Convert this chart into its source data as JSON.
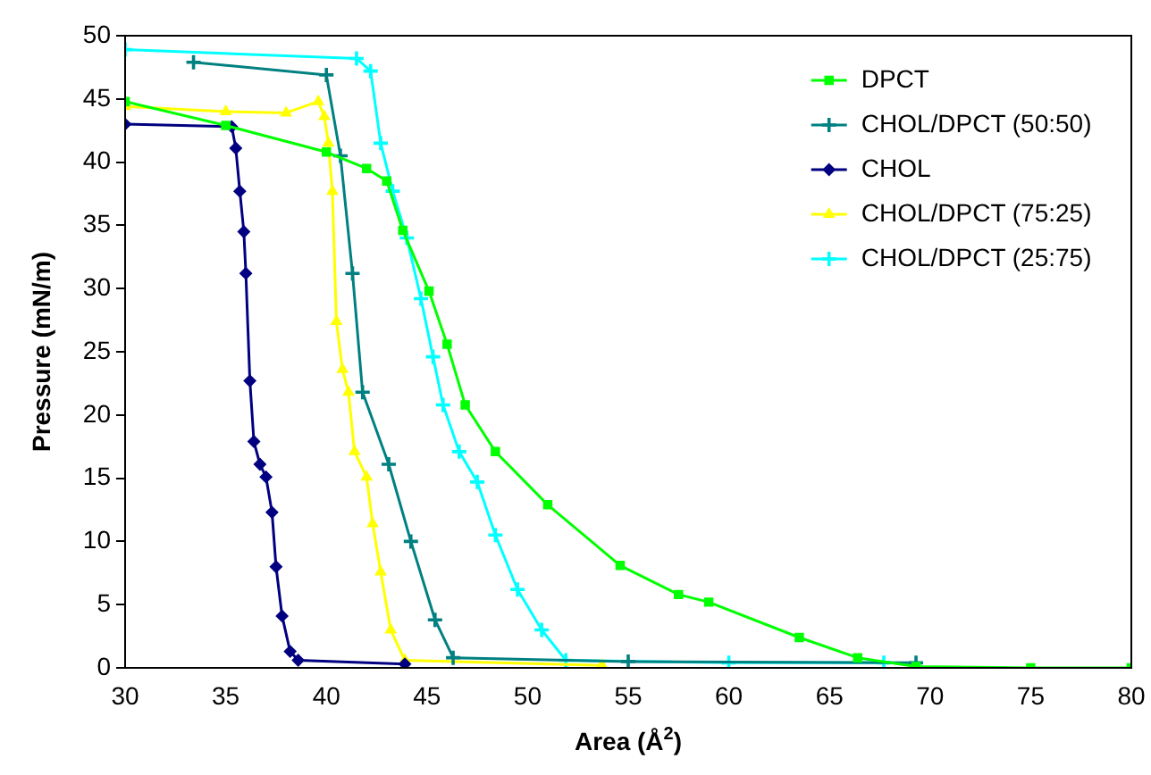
{
  "chart_data": {
    "type": "line",
    "xlabel": "Area (Å$^{2}$)",
    "ylabel": "Pressure (mN/m)",
    "xlim": [
      30,
      80
    ],
    "xticks": [
      30,
      35,
      40,
      45,
      50,
      55,
      60,
      65,
      70,
      75,
      80
    ],
    "ylim": [
      0,
      50
    ],
    "yticks": [
      0,
      5,
      10,
      15,
      20,
      25,
      30,
      35,
      40,
      45,
      50
    ],
    "grid": false,
    "legend": "top right",
    "line_style": "solid",
    "series": [
      {
        "name": "DPCT",
        "color": "#00ff00",
        "marker": "square",
        "x": [
          30,
          35,
          40,
          42,
          43,
          43.8,
          45.1,
          46,
          46.9,
          48.4,
          51,
          54.6,
          57.5,
          59,
          63.5,
          66.4,
          69.3,
          75,
          80
        ],
        "values": [
          44.8,
          42.9,
          40.8,
          39.5,
          38.5,
          34.6,
          29.8,
          25.6,
          20.8,
          17.1,
          12.9,
          8.1,
          5.8,
          5.2,
          2.4,
          0.8,
          0.1,
          0,
          0
        ]
      },
      {
        "name": "CHOL/DPCT (50:50)",
        "color": "#008080",
        "marker": "cross",
        "x": [
          33.4,
          40,
          40.7,
          41.3,
          41.8,
          43.1,
          44.2,
          45.4,
          46.3,
          55,
          69.3
        ],
        "values": [
          47.9,
          46.9,
          40.5,
          31.2,
          21.8,
          16.1,
          10,
          3.8,
          0.8,
          0.5,
          0.4
        ]
      },
      {
        "name": "CHOL",
        "color": "#000080",
        "marker": "diamond",
        "x": [
          30,
          35.3,
          35.5,
          35.7,
          35.9,
          36,
          36.2,
          36.4,
          36.7,
          37,
          37.3,
          37.5,
          37.8,
          38.2,
          38.6,
          43.9
        ],
        "values": [
          43,
          42.8,
          41.1,
          37.7,
          34.5,
          31.2,
          22.7,
          17.9,
          16.1,
          15.1,
          12.3,
          8,
          4.1,
          1.3,
          0.6,
          0.3
        ]
      },
      {
        "name": "CHOL/DPCT (75:25)",
        "color": "#ffff00",
        "marker": "triangle",
        "x": [
          30,
          35,
          38,
          39.6,
          39.9,
          40.1,
          40.3,
          40.5,
          40.8,
          41.1,
          41.4,
          42,
          42.3,
          42.7,
          43.2,
          43.9,
          53.7
        ],
        "values": [
          44.4,
          44,
          43.9,
          44.8,
          43.6,
          41.5,
          37.7,
          27.4,
          23.6,
          21.8,
          17.1,
          15.1,
          11.4,
          7.6,
          3,
          0.6,
          0.2
        ]
      },
      {
        "name": "CHOL/DPCT (25:75)",
        "color": "#00ffff",
        "marker": "cross",
        "x": [
          30,
          41.5,
          42.2,
          42.7,
          43.3,
          44,
          44.7,
          45.3,
          45.8,
          46.6,
          47.5,
          48.4,
          49.5,
          50.7,
          51.9,
          60,
          67.7
        ],
        "values": [
          48.9,
          48.2,
          47.2,
          41.5,
          37.7,
          34,
          29.2,
          24.6,
          20.8,
          17.1,
          14.7,
          10.5,
          6.2,
          3,
          0.6,
          0.4,
          0.4
        ]
      }
    ]
  }
}
